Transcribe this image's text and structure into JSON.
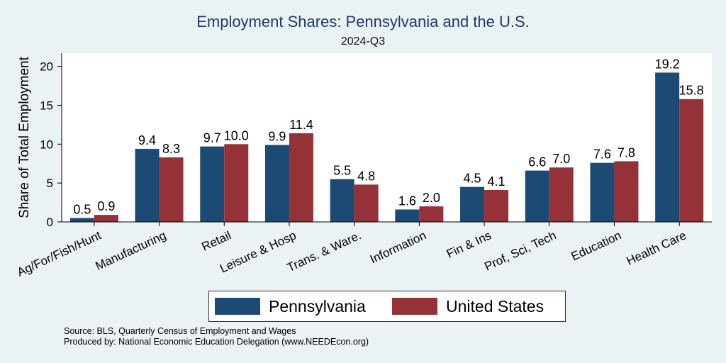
{
  "chart_data": {
    "type": "bar",
    "title": "Employment Shares: Pennsylvania and the U.S.",
    "subtitle": "2024-Q3",
    "ylabel": "Share of Total Employment",
    "ylim": [
      0,
      21.7
    ],
    "yticks": [
      0,
      5,
      10,
      15,
      20
    ],
    "grid": false,
    "legend_position": "bottom",
    "categories": [
      "Ag/For/Fish/Hunt",
      "Manufacturing",
      "Retail",
      "Leisure & Hosp",
      "Trans. & Ware.",
      "Information",
      "Fin & Ins",
      "Prof, Sci, Tech",
      "Education",
      "Health Care"
    ],
    "series": [
      {
        "name": "Pennsylvania",
        "color": "#1b4a74",
        "values": [
          0.5,
          9.4,
          9.7,
          9.9,
          5.5,
          1.6,
          4.5,
          6.6,
          7.6,
          19.2
        ],
        "labels": [
          "0.5",
          "9.4",
          "9.7",
          "9.9",
          "5.5",
          "1.6",
          "4.5",
          "6.6",
          "7.6",
          "19.2"
        ]
      },
      {
        "name": "United States",
        "color": "#953238",
        "values": [
          0.9,
          8.3,
          10.0,
          11.4,
          4.8,
          2.0,
          4.1,
          7.0,
          7.8,
          15.8
        ],
        "labels": [
          "0.9",
          "8.3",
          "10.0",
          "11.4",
          "4.8",
          "2.0",
          "4.1",
          "7.0",
          "7.8",
          "15.8"
        ]
      }
    ]
  },
  "notes": {
    "source": "Source: BLS, Quarterly Census of Employment and Wages",
    "produced": "Produced by: National Economic Education Delegation (www.NEEDEcon.org)"
  }
}
